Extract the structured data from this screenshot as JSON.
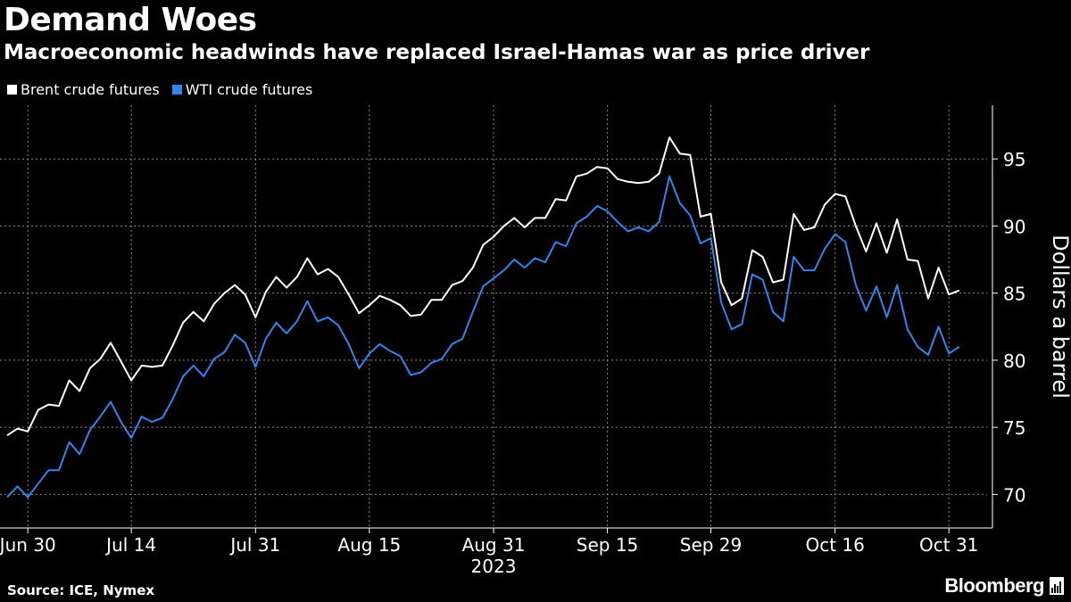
{
  "header": {
    "title": "Demand Woes",
    "subtitle": "Macroeconomic headwinds have replaced Israel-Hamas war as price driver"
  },
  "footer": {
    "source": "Source: ICE, Nymex",
    "brand": "Bloomberg"
  },
  "colors": {
    "background": "#000000",
    "brent": "#ffffff",
    "wti": "#2e86ee",
    "grid": "#8a8a8a"
  },
  "chart_data": {
    "type": "line",
    "title": "Demand Woes",
    "ylabel": "Dollars a barrel",
    "xlabel": "",
    "year_label": "2023",
    "ylim": [
      67.5,
      99
    ],
    "yticks": [
      70,
      75,
      80,
      85,
      90,
      95
    ],
    "xlim": [
      0,
      94
    ],
    "xticks": [
      {
        "label": "Jun 30",
        "x": 2
      },
      {
        "label": "Jul 14",
        "x": 12
      },
      {
        "label": "Jul 31",
        "x": 24
      },
      {
        "label": "Aug 15",
        "x": 35
      },
      {
        "label": "Aug 31",
        "x": 47
      },
      {
        "label": "Sep 15",
        "x": 58
      },
      {
        "label": "Sep 29",
        "x": 68
      },
      {
        "label": "Oct 16",
        "x": 80
      },
      {
        "label": "Oct 31",
        "x": 91
      }
    ],
    "legend_position": "top-left",
    "series": [
      {
        "name": "Brent crude futures",
        "color": "#ffffff",
        "values": [
          74.4,
          74.9,
          74.7,
          76.3,
          76.7,
          76.6,
          78.5,
          77.7,
          79.4,
          80.1,
          81.3,
          79.9,
          78.5,
          79.6,
          79.5,
          79.6,
          81.1,
          82.8,
          83.6,
          82.9,
          84.2,
          85.0,
          85.6,
          84.9,
          83.2,
          85.1,
          86.2,
          85.4,
          86.2,
          87.6,
          86.4,
          86.8,
          86.2,
          84.9,
          83.5,
          84.1,
          84.8,
          84.5,
          84.1,
          83.3,
          83.4,
          84.5,
          84.5,
          85.6,
          85.9,
          86.9,
          88.6,
          89.2,
          90.0,
          90.6,
          89.9,
          90.6,
          90.6,
          92.0,
          91.9,
          93.7,
          93.9,
          94.4,
          94.3,
          93.5,
          93.3,
          93.2,
          93.3,
          93.9,
          96.6,
          95.4,
          95.3,
          90.7,
          90.9,
          85.8,
          84.1,
          84.6,
          88.2,
          87.7,
          85.8,
          86.0,
          90.9,
          89.7,
          89.9,
          91.6,
          92.4,
          92.2,
          90.0,
          88.1,
          90.2,
          88.0,
          90.5,
          87.5,
          87.4,
          84.6,
          86.9,
          84.9,
          85.2
        ]
      },
      {
        "name": "WTI crude futures",
        "color": "#2e86ee",
        "values": [
          69.8,
          70.6,
          69.8,
          70.8,
          71.8,
          71.8,
          73.9,
          73.0,
          74.8,
          75.8,
          76.9,
          75.4,
          74.2,
          75.8,
          75.4,
          75.7,
          77.1,
          78.8,
          79.6,
          78.8,
          80.1,
          80.6,
          81.9,
          81.3,
          79.5,
          81.6,
          82.8,
          82.0,
          82.9,
          84.4,
          82.9,
          83.2,
          82.6,
          81.2,
          79.4,
          80.5,
          81.2,
          80.7,
          80.3,
          78.9,
          79.1,
          79.8,
          80.1,
          81.2,
          81.6,
          83.6,
          85.5,
          86.1,
          86.7,
          87.5,
          86.9,
          87.6,
          87.3,
          88.8,
          88.5,
          90.2,
          90.7,
          91.5,
          91.1,
          90.3,
          89.6,
          89.9,
          89.6,
          90.3,
          93.7,
          91.7,
          90.8,
          88.7,
          89.1,
          84.3,
          82.3,
          82.7,
          86.4,
          86.0,
          83.6,
          82.9,
          87.7,
          86.7,
          86.7,
          88.3,
          89.4,
          88.8,
          85.6,
          83.7,
          85.5,
          83.2,
          85.6,
          82.3,
          81.0,
          80.4,
          82.5,
          80.5,
          81.0
        ]
      }
    ]
  }
}
